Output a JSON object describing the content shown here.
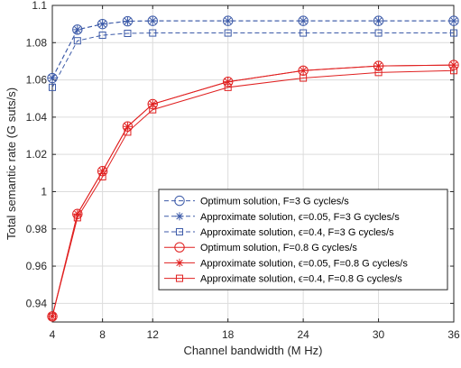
{
  "chart_data": {
    "type": "line",
    "xlabel": "Channel bandwidth (M Hz)",
    "ylabel": "Total semantic rate (G suts/s)",
    "xlim": [
      4,
      36
    ],
    "ylim": [
      0.93,
      1.1
    ],
    "xticks": [
      4,
      8,
      12,
      18,
      24,
      30,
      36
    ],
    "yticks": [
      0.94,
      0.96,
      0.98,
      1,
      1.02,
      1.04,
      1.06,
      1.08,
      1.1
    ],
    "grid": true,
    "legend_position": "center-right",
    "x": [
      4,
      6,
      8,
      10,
      12,
      18,
      24,
      30,
      36
    ],
    "series": [
      {
        "name": "Optimum solution, F=3 G cycles/s",
        "color": "#3c5aa8",
        "dash": "dashed",
        "marker": "circle",
        "values": [
          1.061,
          1.087,
          1.09,
          1.0915,
          1.0917,
          1.0917,
          1.0917,
          1.0917,
          1.0917
        ]
      },
      {
        "name": "Approximate solution, ϵ=0.05, F=3 G cycles/s",
        "color": "#3c5aa8",
        "dash": "dashed",
        "marker": "star",
        "values": [
          1.061,
          1.087,
          1.09,
          1.0915,
          1.0917,
          1.0917,
          1.0917,
          1.0917,
          1.0917
        ]
      },
      {
        "name": "Approximate solution, ϵ=0.4, F=3 G cycles/s",
        "color": "#3c5aa8",
        "dash": "dashed",
        "marker": "square",
        "values": [
          1.056,
          1.081,
          1.084,
          1.085,
          1.0852,
          1.0852,
          1.0852,
          1.0852,
          1.0852
        ]
      },
      {
        "name": "Optimum solution, F=0.8 G cycles/s",
        "color": "#e02020",
        "dash": "solid",
        "marker": "circle",
        "values": [
          0.933,
          0.988,
          1.011,
          1.035,
          1.047,
          1.059,
          1.065,
          1.0675,
          1.068
        ]
      },
      {
        "name": "Approximate solution, ϵ=0.05, F=0.8 G cycles/s",
        "color": "#e02020",
        "dash": "solid",
        "marker": "star",
        "values": [
          0.933,
          0.988,
          1.011,
          1.035,
          1.047,
          1.059,
          1.065,
          1.0675,
          1.068
        ]
      },
      {
        "name": "Approximate solution, ϵ=0.4, F=0.8 G cycles/s",
        "color": "#e02020",
        "dash": "solid",
        "marker": "square",
        "values": [
          0.933,
          0.986,
          1.008,
          1.032,
          1.044,
          1.056,
          1.061,
          1.064,
          1.065
        ]
      }
    ]
  }
}
